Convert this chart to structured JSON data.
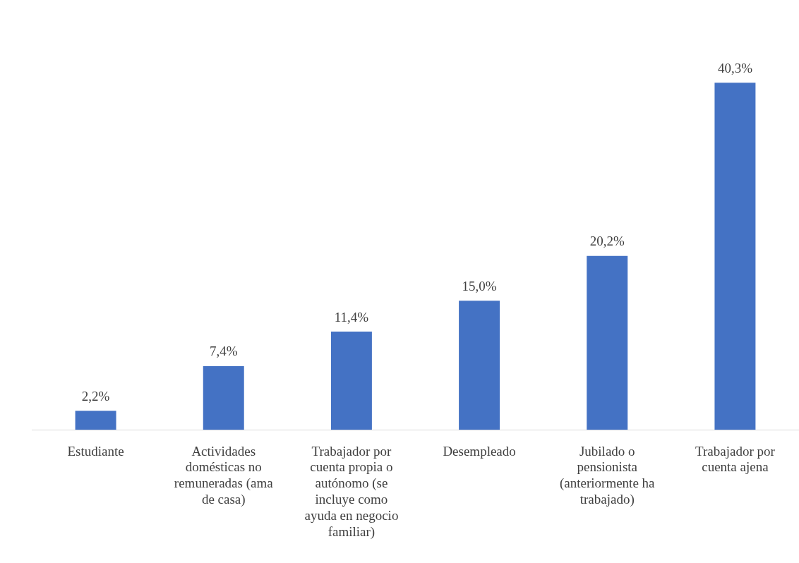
{
  "chart_data": {
    "type": "bar",
    "categories": [
      "Estudiante",
      "Actividades domésticas no remuneradas (ama de casa)",
      "Trabajador por cuenta propia o autónomo (se incluye como ayuda en negocio familiar)",
      "Desempleado",
      "Jubilado o pensionista (anteriormente ha trabajado)",
      "Trabajador por cuenta ajena"
    ],
    "values": [
      2.2,
      7.4,
      11.4,
      15.0,
      20.2,
      40.3
    ],
    "value_labels": [
      "2,2%",
      "7,4%",
      "11,4%",
      "15,0%",
      "20,2%",
      "40,3%"
    ],
    "color": "#4472c4",
    "legend": false
  }
}
